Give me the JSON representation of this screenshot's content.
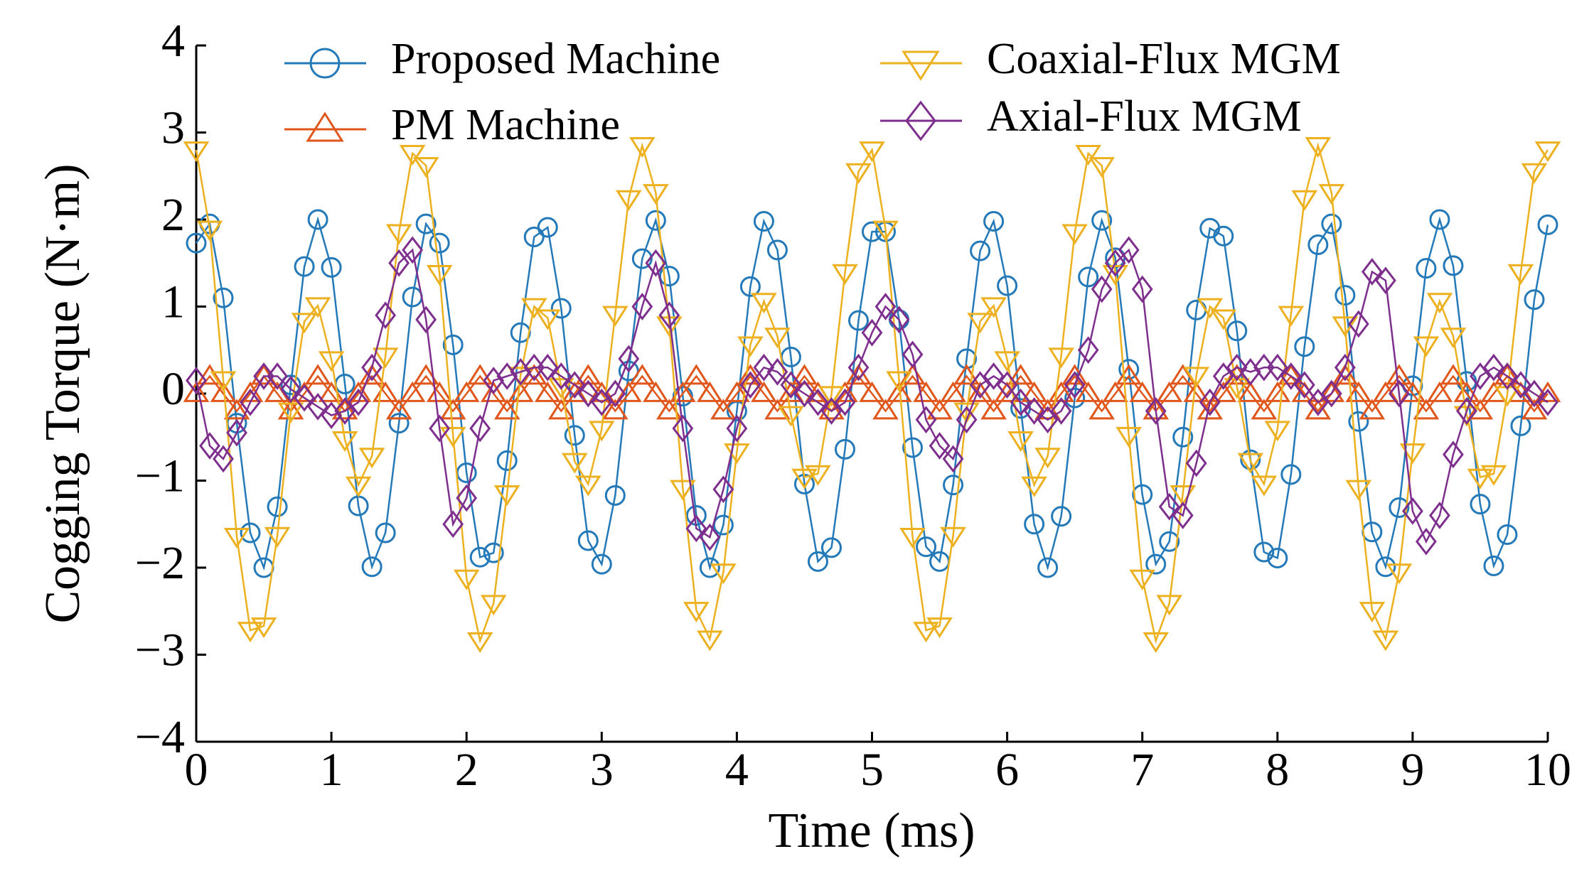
{
  "chart_data": {
    "type": "line",
    "xlabel": "Time (ms)",
    "ylabel": "Cogging Torque (N·m)",
    "x": [
      0,
      0.1,
      0.2,
      0.3,
      0.4,
      0.5,
      0.6,
      0.7,
      0.8,
      0.9,
      1,
      1.1,
      1.2,
      1.3,
      1.4,
      1.5,
      1.6,
      1.7,
      1.8,
      1.9,
      2,
      2.1,
      2.2,
      2.3,
      2.4,
      2.5,
      2.6,
      2.7,
      2.8,
      2.9,
      3,
      3.1,
      3.2,
      3.3,
      3.4,
      3.5,
      3.6,
      3.7,
      3.8,
      3.9,
      4,
      4.1,
      4.2,
      4.3,
      4.4,
      4.5,
      4.6,
      4.7,
      4.8,
      4.9,
      5,
      5.1,
      5.2,
      5.3,
      5.4,
      5.5,
      5.6,
      5.7,
      5.8,
      5.9,
      6,
      6.1,
      6.2,
      6.3,
      6.4,
      6.5,
      6.6,
      6.7,
      6.8,
      6.9,
      7,
      7.1,
      7.2,
      7.3,
      7.4,
      7.5,
      7.6,
      7.7,
      7.8,
      7.9,
      8,
      8.1,
      8.2,
      8.3,
      8.4,
      8.5,
      8.6,
      8.7,
      8.8,
      8.9,
      9,
      9.1,
      9.2,
      9.3,
      9.4,
      9.5,
      9.6,
      9.7,
      9.8,
      9.9,
      10
    ],
    "series": [
      {
        "name": "Proposed Machine",
        "color": "#2479b8",
        "marker": "circle",
        "values": [
          1.73,
          1.95,
          1.1,
          -0.34,
          -1.6,
          -2.0,
          -1.3,
          0.1,
          1.46,
          2.0,
          1.45,
          0.11,
          -1.29,
          -1.99,
          -1.6,
          -0.34,
          1.11,
          1.95,
          1.73,
          0.56,
          -0.91,
          -1.88,
          -1.83,
          -0.77,
          0.7,
          1.8,
          1.91,
          0.98,
          -0.48,
          -1.69,
          -1.96,
          -1.17,
          0.26,
          1.55,
          1.99,
          1.35,
          -0.03,
          -1.4,
          -2.0,
          -1.51,
          -0.2,
          1.23,
          1.98,
          1.65,
          0.42,
          -1.04,
          -1.93,
          -1.77,
          -0.64,
          0.84,
          1.86,
          1.86,
          0.85,
          -0.62,
          -1.76,
          -1.93,
          -1.05,
          0.4,
          1.64,
          1.98,
          1.24,
          -0.17,
          -1.5,
          -2.0,
          -1.41,
          -0.05,
          1.34,
          1.99,
          1.56,
          0.28,
          -1.16,
          -1.96,
          -1.7,
          -0.5,
          0.96,
          1.9,
          1.81,
          0.72,
          -0.76,
          -1.82,
          -1.89,
          -0.93,
          0.54,
          1.71,
          1.95,
          1.13,
          -0.32,
          -1.59,
          -1.99,
          -1.31,
          0.09,
          1.44,
          2.0,
          1.47,
          0.14,
          -1.27,
          -1.98,
          -1.62,
          -0.37,
          1.08,
          1.94
        ]
      },
      {
        "name": "PM Machine",
        "color": "#e0561b",
        "marker": "triangle-up",
        "values": [
          0,
          0.2,
          0,
          -0.2,
          0,
          0.2,
          0,
          -0.2,
          0,
          0.2,
          0,
          -0.2,
          0,
          0.2,
          0,
          -0.2,
          0,
          0.2,
          0,
          -0.2,
          0,
          0.2,
          0,
          -0.2,
          0,
          0.2,
          0,
          -0.2,
          0,
          0.2,
          0,
          -0.2,
          0,
          0.2,
          0,
          -0.2,
          0,
          0.2,
          0,
          -0.2,
          0,
          0.2,
          0,
          -0.2,
          0,
          0.2,
          0,
          -0.2,
          0,
          0.2,
          0,
          -0.2,
          0,
          0.2,
          0,
          -0.2,
          0,
          0.2,
          0,
          -0.2,
          0,
          0.2,
          0,
          -0.2,
          0,
          0.2,
          0,
          -0.2,
          0,
          0.2,
          0,
          -0.2,
          0,
          0.2,
          0,
          -0.2,
          0,
          0.2,
          0,
          -0.2,
          0,
          0.2,
          0,
          -0.2,
          0,
          0.2,
          0,
          -0.2,
          0,
          0.2,
          0,
          -0.2,
          0,
          0.2,
          0,
          -0.2,
          0,
          0.2,
          0,
          -0.2,
          0
        ]
      },
      {
        "name": "Coaxial-Flux MGM",
        "color": "#edb120",
        "marker": "triangle-down",
        "values": [
          2.8,
          1.89,
          0.16,
          -1.64,
          -2.72,
          -2.67,
          -1.63,
          -0.2,
          0.83,
          1.01,
          0.39,
          -0.53,
          -1.05,
          -0.72,
          0.43,
          1.85,
          2.76,
          2.62,
          1.38,
          -0.48,
          -2.12,
          -2.84,
          -2.41,
          -1.15,
          0.21,
          1.0,
          0.87,
          0.08,
          -0.78,
          -1.04,
          -0.41,
          0.91,
          2.24,
          2.85,
          2.31,
          0.79,
          -1.09,
          -2.49,
          -2.82,
          -2.05,
          -0.67,
          0.56,
          1.06,
          0.66,
          -0.24,
          -0.96,
          -0.92,
          -0.01,
          1.39,
          2.55,
          2.8,
          1.89,
          0.16,
          -1.64,
          -2.72,
          -2.67,
          -1.63,
          -0.2,
          0.83,
          1.01,
          0.39,
          -0.53,
          -1.05,
          -0.72,
          0.43,
          1.85,
          2.76,
          2.62,
          1.38,
          -0.48,
          -2.12,
          -2.84,
          -2.41,
          -1.15,
          0.21,
          1.0,
          0.87,
          0.08,
          -0.78,
          -1.04,
          -0.41,
          0.91,
          2.24,
          2.85,
          2.31,
          0.79,
          -1.09,
          -2.49,
          -2.82,
          -2.05,
          -0.67,
          0.56,
          1.06,
          0.66,
          -0.24,
          -0.96,
          -0.92,
          -0.01,
          1.39,
          2.55,
          2.8
        ]
      },
      {
        "name": "Axial-Flux MGM",
        "color": "#7e2f8e",
        "marker": "diamond",
        "values": [
          0.15,
          -0.6,
          -0.75,
          -0.45,
          -0.1,
          0.2,
          0.2,
          0.05,
          -0.05,
          -0.15,
          -0.25,
          -0.2,
          -0.1,
          0.3,
          0.9,
          1.5,
          1.65,
          0.85,
          -0.4,
          -1.5,
          -1.2,
          -0.4,
          0.15,
          0.2,
          0.25,
          0.3,
          0.3,
          0.2,
          0.1,
          0,
          -0.1,
          0,
          0.4,
          1.0,
          1.5,
          0.9,
          -0.4,
          -1.55,
          -1.65,
          -1.1,
          -0.4,
          0.1,
          0.3,
          0.25,
          0.1,
          0,
          -0.1,
          -0.2,
          -0.1,
          0.3,
          0.7,
          1.0,
          0.85,
          0.45,
          -0.3,
          -0.6,
          -0.75,
          -0.3,
          0.1,
          0.2,
          0.1,
          -0.1,
          -0.2,
          -0.3,
          -0.2,
          0.1,
          0.5,
          1.2,
          1.5,
          1.65,
          1.2,
          -0.2,
          -1.3,
          -1.4,
          -0.8,
          -0.1,
          0.2,
          0.3,
          0.25,
          0.3,
          0.3,
          0.2,
          0.1,
          -0.1,
          0,
          0.3,
          0.8,
          1.4,
          1.3,
          0,
          -1.35,
          -1.7,
          -1.4,
          -0.7,
          -0.2,
          0.2,
          0.3,
          0.2,
          0.1,
          0,
          -0.1
        ]
      }
    ],
    "xlim": [
      0,
      10
    ],
    "xticks": [
      0,
      1,
      2,
      3,
      4,
      5,
      6,
      7,
      8,
      9,
      10
    ],
    "ylim": [
      -4,
      4
    ],
    "yticks": [
      {
        "value": -4,
        "label": "−4"
      },
      {
        "value": -3,
        "label": "−3"
      },
      {
        "value": -2,
        "label": "−2"
      },
      {
        "value": -1,
        "label": "−1"
      },
      0,
      1,
      2,
      3,
      4
    ],
    "grid": false,
    "legend": "top"
  }
}
